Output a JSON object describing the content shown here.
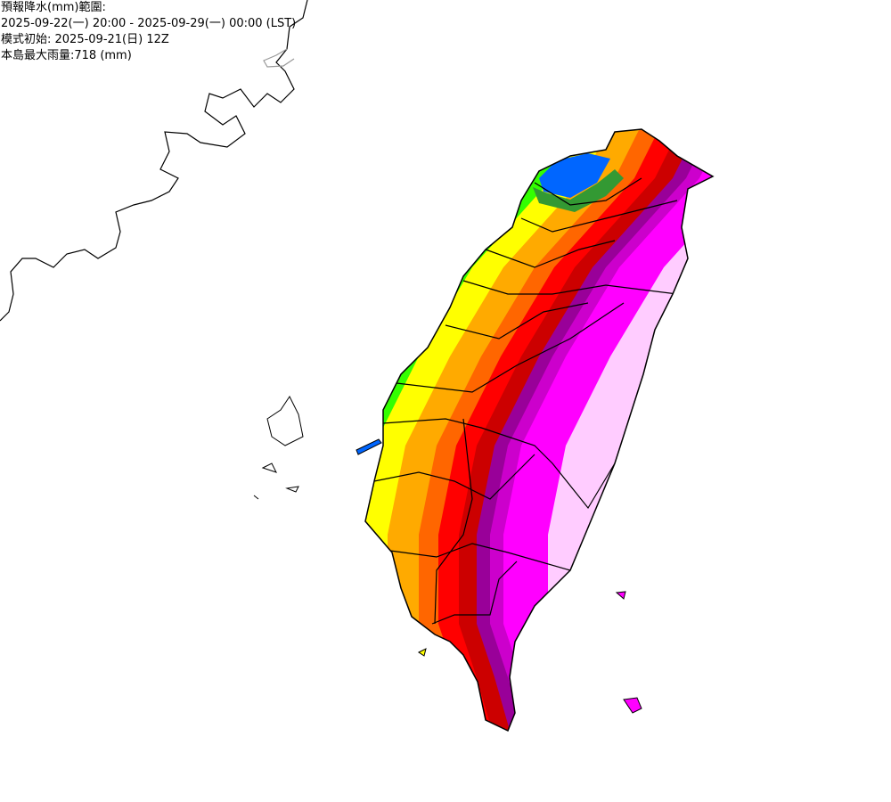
{
  "header": {
    "title": "預報降水(mm)範圍:",
    "period": "2025-09-22(一) 20:00 - 2025-09-29(一) 00:00 (LST)",
    "model_init": "模式初始: 2025-09-21(日) 12Z",
    "max_rain": "本島最大雨量:718 (mm)"
  },
  "map": {
    "region": "Taiwan",
    "color_scale": [
      "#0066ff",
      "#339933",
      "#33ff00",
      "#ffff00",
      "#ffaa00",
      "#ff6600",
      "#ff0000",
      "#cc0000",
      "#990099",
      "#cc00cc",
      "#ff00ff",
      "#ffccff"
    ]
  }
}
